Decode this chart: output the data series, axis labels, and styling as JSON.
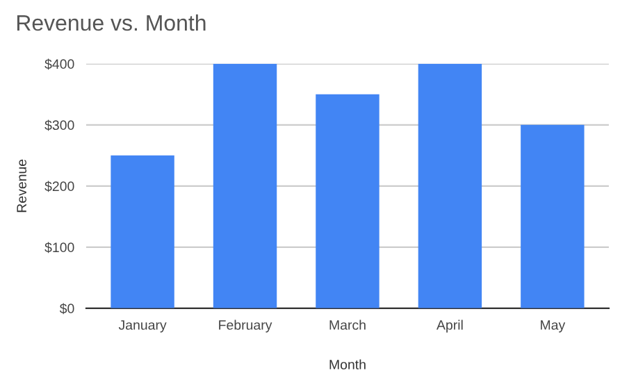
{
  "chart_data": {
    "type": "bar",
    "title": "Revenue vs. Month",
    "xlabel": "Month",
    "ylabel": "Revenue",
    "categories": [
      "January",
      "February",
      "March",
      "April",
      "May"
    ],
    "values": [
      250,
      400,
      350,
      400,
      300
    ],
    "color": "#4285f4",
    "ylim": [
      0,
      400
    ],
    "yticks": [
      {
        "value": 0,
        "label": "$0"
      },
      {
        "value": 100,
        "label": "$100"
      },
      {
        "value": 200,
        "label": "$200"
      },
      {
        "value": 300,
        "label": "$300"
      },
      {
        "value": 400,
        "label": "$400"
      }
    ],
    "grid": "y"
  }
}
